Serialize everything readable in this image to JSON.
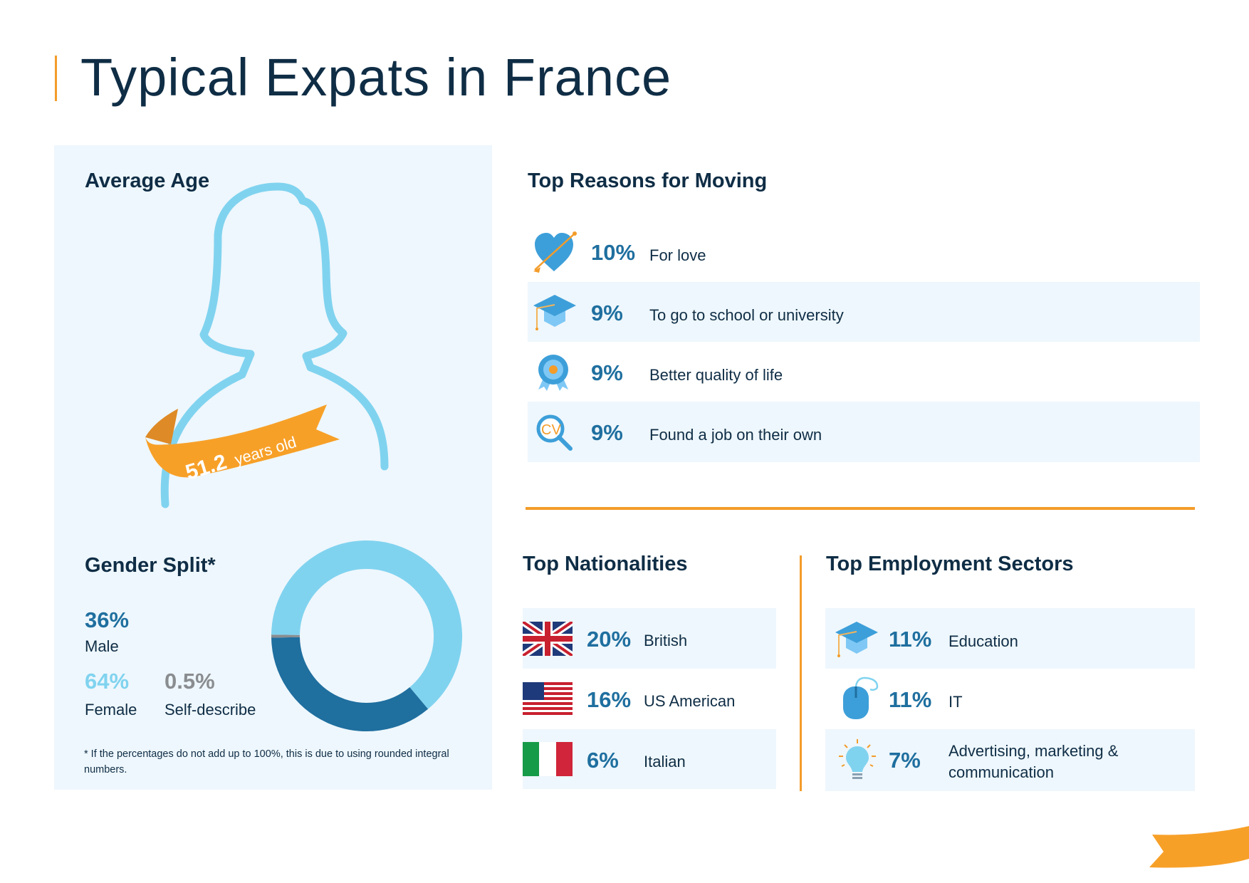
{
  "title": "Typical Expats in France",
  "average_age": {
    "heading": "Average Age",
    "value": "51.2",
    "unit": "years old"
  },
  "gender_split": {
    "heading": "Gender Split*",
    "male": {
      "pct": "36%",
      "label": "Male",
      "value": 36,
      "color": "#1f6f9f"
    },
    "female": {
      "pct": "64%",
      "label": "Female",
      "value": 64,
      "color": "#80d3ef"
    },
    "self": {
      "pct": "0.5%",
      "label": "Self-describe",
      "value": 0.5,
      "color": "#8a8d90"
    },
    "footnote": "* If the percentages do not add up to 100%, this is due to using rounded integral numbers."
  },
  "reasons": {
    "heading": "Top Reasons for Moving",
    "items": [
      {
        "icon": "heart-arrow-icon",
        "pct": "10%",
        "label": "For love"
      },
      {
        "icon": "graduation-cap-icon",
        "pct": "9%",
        "label": "To go to school or university"
      },
      {
        "icon": "award-badge-icon",
        "pct": "9%",
        "label": "Better quality of life"
      },
      {
        "icon": "cv-search-icon",
        "pct": "9%",
        "label": "Found a job on their own"
      }
    ]
  },
  "nationalities": {
    "heading": "Top Nationalities",
    "items": [
      {
        "icon": "uk-flag-icon",
        "pct": "20%",
        "label": "British"
      },
      {
        "icon": "us-flag-icon",
        "pct": "16%",
        "label": "US American"
      },
      {
        "icon": "italy-flag-icon",
        "pct": "6%",
        "label": "Italian"
      }
    ]
  },
  "sectors": {
    "heading": "Top Employment Sectors",
    "items": [
      {
        "icon": "graduation-cap-icon",
        "pct": "11%",
        "label": "Education"
      },
      {
        "icon": "computer-mouse-icon",
        "pct": "11%",
        "label": "IT"
      },
      {
        "icon": "lightbulb-icon",
        "pct": "7%",
        "label": "Advertising, marketing & communication"
      }
    ]
  },
  "colors": {
    "accent": "#f39c2a",
    "dark_blue": "#1f6f9f",
    "light_blue": "#80d3ef",
    "panel": "#eef7fd"
  }
}
